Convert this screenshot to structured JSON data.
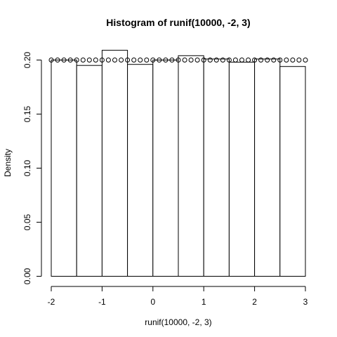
{
  "chart_data": {
    "type": "bar",
    "title": "Histogram of runif(10000, -2, 3)",
    "xlabel": "runif(10000, -2, 3)",
    "ylabel": "Density",
    "bins": [
      {
        "x0": -2.0,
        "x1": -1.5,
        "density": 0.2
      },
      {
        "x0": -1.5,
        "x1": -1.0,
        "density": 0.195
      },
      {
        "x0": -1.0,
        "x1": -0.5,
        "density": 0.209
      },
      {
        "x0": -0.5,
        "x1": 0.0,
        "density": 0.196
      },
      {
        "x0": 0.0,
        "x1": 0.5,
        "density": 0.2
      },
      {
        "x0": 0.5,
        "x1": 1.0,
        "density": 0.204
      },
      {
        "x0": 1.0,
        "x1": 1.5,
        "density": 0.201
      },
      {
        "x0": 1.5,
        "x1": 2.0,
        "density": 0.198
      },
      {
        "x0": 2.0,
        "x1": 2.5,
        "density": 0.201
      },
      {
        "x0": 2.5,
        "x1": 3.0,
        "density": 0.194
      }
    ],
    "xlim": [
      -2,
      3
    ],
    "ylim": [
      0,
      0.2
    ],
    "xticks": [
      -2,
      -1,
      0,
      1,
      2,
      3
    ],
    "xtick_labels": [
      "-2",
      "-1",
      "0",
      "1",
      "2",
      "3"
    ],
    "yticks": [
      0,
      0.05,
      0.1,
      0.15,
      0.2
    ],
    "ytick_labels": [
      "0.00",
      "0.05",
      "0.10",
      "0.15",
      "0.20"
    ],
    "density_points": {
      "marker": "open-circle",
      "x_from": -2,
      "x_to": 3,
      "count": 41,
      "y": 0.2
    },
    "grid": false
  }
}
